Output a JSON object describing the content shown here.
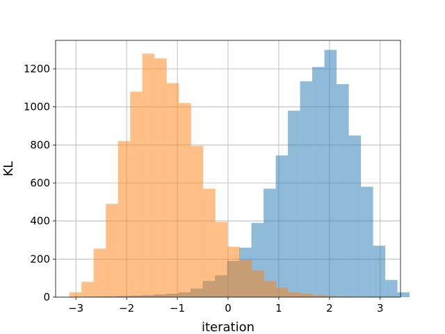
{
  "chart_data": {
    "type": "bar",
    "subtype": "overlapping-histogram",
    "title": "",
    "xlabel": "iteration",
    "ylabel": "KL",
    "xlim": [
      -3.4,
      3.4
    ],
    "ylim": [
      0,
      1350
    ],
    "xticks": [
      -3,
      -2,
      -1,
      0,
      1,
      2,
      3
    ],
    "xtick_labels": [
      "−3",
      "−2",
      "−1",
      "0",
      "1",
      "2",
      "3"
    ],
    "yticks": [
      0,
      200,
      400,
      600,
      800,
      1000,
      1200
    ],
    "ytick_labels": [
      "0",
      "200",
      "400",
      "600",
      "800",
      "1000",
      "1200"
    ],
    "grid": true,
    "legend": "none",
    "series": [
      {
        "color": "#1f77b4",
        "alpha": 0.5,
        "bin_start": -2.9,
        "bin_width": 0.24,
        "counts": [
          2,
          3,
          4,
          6,
          8,
          10,
          14,
          18,
          25,
          45,
          85,
          115,
          190,
          260,
          390,
          570,
          745,
          980,
          1135,
          1210,
          1300,
          1120,
          850,
          580,
          270,
          90,
          25
        ]
      },
      {
        "color": "#ff7f0e",
        "alpha": 0.5,
        "bin_start": -3.13,
        "bin_width": 0.24,
        "counts": [
          25,
          80,
          255,
          490,
          820,
          1080,
          1280,
          1255,
          1125,
          1020,
          795,
          570,
          395,
          265,
          195,
          140,
          85,
          50,
          25,
          18,
          10,
          6,
          3,
          2,
          1
        ]
      }
    ]
  }
}
